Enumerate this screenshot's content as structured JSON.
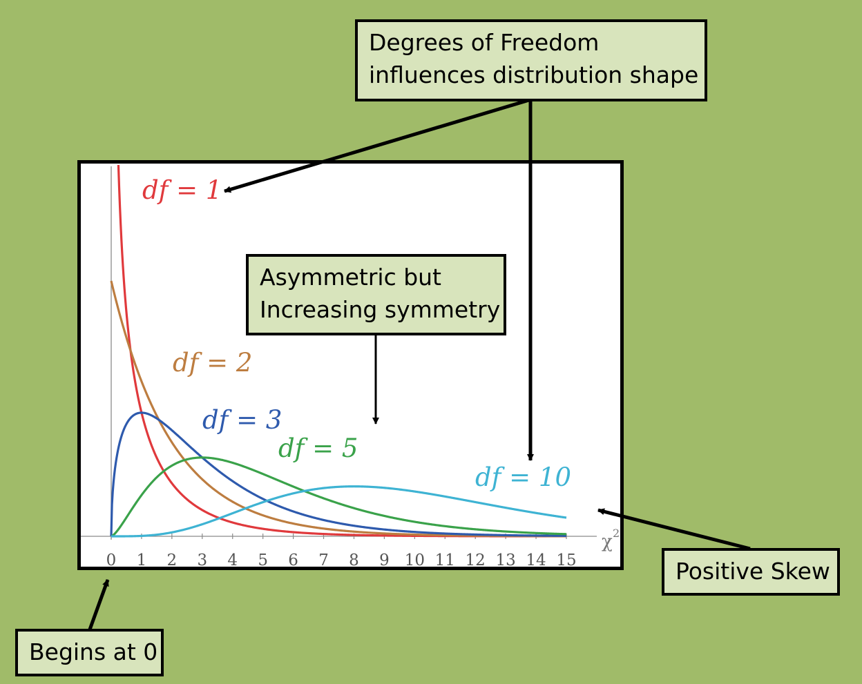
{
  "chart_data": {
    "type": "line",
    "title": "",
    "xlabel": "χ²",
    "ylabel": "",
    "xlim": [
      0,
      15
    ],
    "ylim": [
      0,
      0.55
    ],
    "x_ticks": [
      "0",
      "1",
      "2",
      "3",
      "4",
      "5",
      "6",
      "7",
      "8",
      "9",
      "10",
      "11",
      "12",
      "13",
      "14",
      "15"
    ],
    "grid": false,
    "series": [
      {
        "name": "df = 1",
        "label": "df = 1",
        "df": 1,
        "color": "#e0393c"
      },
      {
        "name": "df = 2",
        "label": "df = 2",
        "df": 2,
        "color": "#bd7d40"
      },
      {
        "name": "df = 3",
        "label": "df = 3",
        "df": 3,
        "color": "#2e5aad"
      },
      {
        "name": "df = 5",
        "label": "df = 5",
        "df": 5,
        "color": "#3aa24a"
      },
      {
        "name": "df = 10",
        "label": "df = 10",
        "df": 10,
        "color": "#3eb3d3"
      }
    ]
  },
  "callouts": {
    "degrees": {
      "line1": "Degrees of Freedom",
      "line2": "influences distribution shape"
    },
    "asymmetric": {
      "line1": "Asymmetric but",
      "line2": "Increasing symmetry"
    },
    "skew": {
      "line1": "Positive Skew"
    },
    "begins": {
      "line1": "Begins at 0"
    }
  },
  "colors": {
    "background": "#a0bb69",
    "callout_fill": "#d8e4bc",
    "axis": "#888888"
  }
}
